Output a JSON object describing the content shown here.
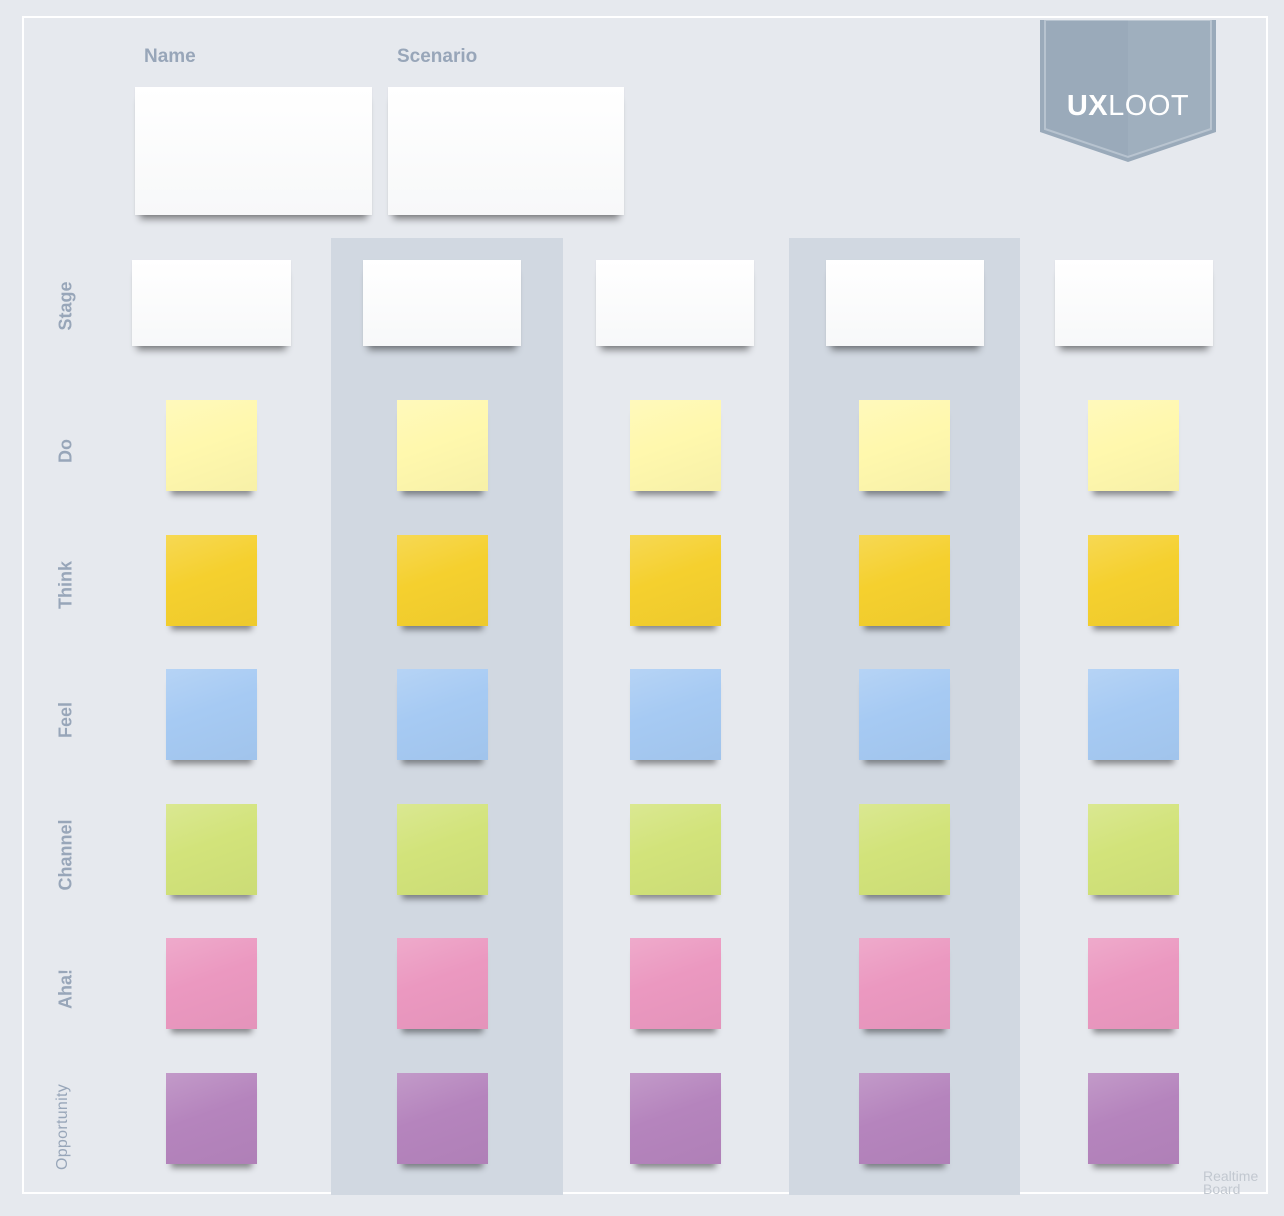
{
  "header": {
    "name_label": "Name",
    "scenario_label": "Scenario"
  },
  "logo": {
    "bold_part": "UX",
    "light_part": "LOOT",
    "color": "#9aaaba"
  },
  "rows": [
    {
      "id": "stage",
      "label": "Stage"
    },
    {
      "id": "do",
      "label": "Do",
      "color": "#fff8ad"
    },
    {
      "id": "think",
      "label": "Think",
      "color": "#f5d02e"
    },
    {
      "id": "feel",
      "label": "Feel",
      "color": "#a6caf3"
    },
    {
      "id": "channel",
      "label": "Channel",
      "color": "#d2e37a"
    },
    {
      "id": "aha",
      "label": "Aha!",
      "color": "#eb98c0"
    },
    {
      "id": "opportunity",
      "label": "Opportunity",
      "color": "#b584bd"
    }
  ],
  "colors": {
    "background": "#e6e9ee",
    "band": "#d1d8e1",
    "label": "#98a6b9"
  },
  "watermark": {
    "line1": "Realtime",
    "line2": "Board"
  }
}
